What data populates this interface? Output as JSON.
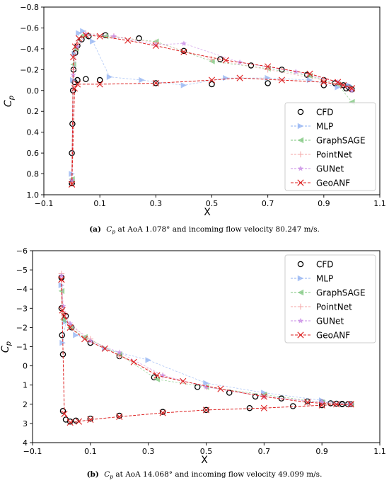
{
  "legend_labels": [
    "CFD",
    "MLP",
    "GraphSAGE",
    "PointNet",
    "GUNet",
    "GeoANF"
  ],
  "series_colors": {
    "CFD": "#000000",
    "MLP": "#8fb0f2",
    "GraphSAGE": "#7cc67c",
    "PointNet": "#f4a6a6",
    "GUNet": "#c98ce6",
    "GeoANF": "#dd2222"
  },
  "captions": [
    {
      "tag": "(a)",
      "pre": "C",
      "sub": "p",
      "text": " at AoA 1.078° and incoming flow velocity 80.247 m/s."
    },
    {
      "tag": "(b)",
      "pre": "C",
      "sub": "p",
      "text": " at AoA 14.068° and incoming flow velocity 49.099 m/s."
    }
  ],
  "chart_data": [
    {
      "type": "line",
      "xlabel": "X",
      "ylabel": "Cp",
      "xlim": [
        -0.1,
        1.1
      ],
      "ylim": [
        1.0,
        -0.8
      ],
      "y_inverted": true,
      "xticks": [
        "−0.1",
        "0.1",
        "0.3",
        "0.5",
        "0.7",
        "0.9",
        "1.1"
      ],
      "xtick_values": [
        -0.1,
        0.1,
        0.3,
        0.5,
        0.7,
        0.9,
        1.1
      ],
      "yticks": [
        "−0.8",
        "−0.6",
        "−0.4",
        "−0.2",
        "0.0",
        "0.2",
        "0.4",
        "0.6",
        "0.8",
        "1.0"
      ],
      "ytick_values": [
        -0.8,
        -0.6,
        -0.4,
        -0.2,
        0.0,
        0.2,
        0.4,
        0.6,
        0.8,
        1.0
      ],
      "legend_position": "lower right",
      "grid": false,
      "series": [
        {
          "name": "CFD",
          "marker": "circle",
          "x": [
            0.0,
            0.0,
            0.002,
            0.006,
            0.012,
            0.02,
            0.035,
            0.06,
            0.12,
            0.24,
            0.4,
            0.53,
            0.64,
            0.75,
            0.84,
            0.9,
            0.94,
            0.97,
            0.99,
            1.0
          ],
          "y": [
            0.89,
            0.6,
            0.32,
            -0.2,
            -0.36,
            -0.43,
            -0.49,
            -0.52,
            -0.53,
            -0.5,
            -0.38,
            -0.3,
            -0.24,
            -0.2,
            -0.15,
            -0.1,
            -0.07,
            -0.05,
            -0.03,
            -0.01
          ]
        },
        {
          "name": "CFD lower",
          "marker": "circle",
          "x": [
            0.0,
            0.004,
            0.01,
            0.02,
            0.05,
            0.1,
            0.3,
            0.5,
            0.7,
            0.9,
            0.98,
            1.0
          ],
          "y": [
            0.89,
            0.0,
            -0.08,
            -0.1,
            -0.11,
            -0.1,
            -0.07,
            -0.06,
            -0.07,
            -0.05,
            -0.02,
            -0.01
          ]
        },
        {
          "name": "MLP",
          "marker": "triangle-right",
          "x": [
            0.0,
            0.004,
            0.01,
            0.025,
            0.04,
            0.075,
            0.135,
            0.25,
            0.4,
            0.55,
            0.7,
            0.85,
            0.95,
            0.99
          ],
          "y": [
            0.8,
            -0.1,
            -0.35,
            -0.55,
            -0.57,
            -0.47,
            -0.13,
            -0.1,
            -0.05,
            -0.12,
            -0.12,
            -0.1,
            -0.03,
            -0.05
          ]
        },
        {
          "name": "GraphSAGE",
          "marker": "triangle-left",
          "x": [
            0.0,
            0.005,
            0.015,
            0.04,
            0.12,
            0.3,
            0.5,
            0.7,
            0.85,
            0.95,
            1.0
          ],
          "y": [
            0.85,
            -0.25,
            -0.4,
            -0.53,
            -0.52,
            -0.47,
            -0.28,
            -0.21,
            -0.14,
            -0.06,
            0.11
          ]
        },
        {
          "name": "PointNet",
          "marker": "plus",
          "x": [
            0.0,
            0.005,
            0.02,
            0.05,
            0.15,
            0.3,
            0.5,
            0.7,
            0.9,
            1.0
          ],
          "y": [
            0.88,
            -0.2,
            -0.45,
            -0.55,
            -0.52,
            -0.46,
            -0.3,
            -0.2,
            -0.1,
            -0.01
          ]
        },
        {
          "name": "GUNet",
          "marker": "star",
          "x": [
            0.0,
            0.005,
            0.02,
            0.05,
            0.15,
            0.3,
            0.4,
            0.6,
            0.8,
            0.95,
            1.0
          ],
          "y": [
            0.86,
            -0.15,
            -0.42,
            -0.54,
            -0.52,
            -0.44,
            -0.45,
            -0.27,
            -0.18,
            -0.08,
            0.0
          ]
        },
        {
          "name": "GeoANF",
          "marker": "x",
          "x": [
            0.0,
            0.005,
            0.012,
            0.025,
            0.05,
            0.1,
            0.2,
            0.3,
            0.4,
            0.55,
            0.7,
            0.85,
            0.95,
            1.0
          ],
          "y": [
            0.9,
            -0.32,
            -0.42,
            -0.5,
            -0.53,
            -0.52,
            -0.48,
            -0.43,
            -0.37,
            -0.29,
            -0.23,
            -0.16,
            -0.08,
            -0.02
          ]
        },
        {
          "name": "GeoANF lower",
          "marker": "x",
          "x": [
            0.0,
            0.01,
            0.02,
            0.1,
            0.3,
            0.5,
            0.6,
            0.75,
            0.9,
            0.97,
            1.0
          ],
          "y": [
            0.9,
            -0.02,
            -0.06,
            -0.06,
            -0.07,
            -0.1,
            -0.12,
            -0.1,
            -0.08,
            -0.05,
            -0.02
          ]
        }
      ]
    },
    {
      "type": "line",
      "xlabel": "X",
      "ylabel": "Cp",
      "xlim": [
        -0.1,
        1.1
      ],
      "ylim": [
        4,
        -6
      ],
      "y_inverted": true,
      "xticks": [
        "−0.1",
        "0.1",
        "0.3",
        "0.5",
        "0.7",
        "0.9",
        "1.1"
      ],
      "xtick_values": [
        -0.1,
        0.1,
        0.3,
        0.5,
        0.7,
        0.9,
        1.1
      ],
      "yticks": [
        "−6",
        "−5",
        "−4",
        "−3",
        "−2",
        "−1",
        "0",
        "1",
        "2",
        "3",
        "4"
      ],
      "ytick_values": [
        -6,
        -5,
        -4,
        -3,
        -2,
        -1,
        0,
        1,
        2,
        3,
        4
      ],
      "legend_position": "upper right",
      "grid": false,
      "series": [
        {
          "name": "CFD",
          "marker": "circle",
          "x": [
            0.0,
            0.0,
            0.002,
            0.005,
            0.015,
            0.035,
            0.1,
            0.2,
            0.32,
            0.47,
            0.58,
            0.67,
            0.76,
            0.85,
            0.9,
            0.93,
            0.95,
            0.97,
            0.99,
            1.0
          ],
          "y": [
            -4.6,
            -3.0,
            -1.6,
            -0.6,
            -2.6,
            -2.0,
            -1.2,
            -0.5,
            0.6,
            1.1,
            1.4,
            1.6,
            1.7,
            1.85,
            1.9,
            1.95,
            1.97,
            1.98,
            2.0,
            2.0
          ]
        },
        {
          "name": "CFD lower",
          "marker": "circle",
          "x": [
            0.0,
            0.005,
            0.015,
            0.03,
            0.05,
            0.1,
            0.2,
            0.35,
            0.5,
            0.65,
            0.8,
            0.9,
            0.97,
            1.0
          ],
          "y": [
            -4.6,
            2.35,
            2.8,
            2.9,
            2.85,
            2.75,
            2.6,
            2.4,
            2.3,
            2.2,
            2.1,
            2.05,
            2.0,
            2.0
          ]
        },
        {
          "name": "MLP",
          "marker": "triangle-right",
          "x": [
            0.0,
            0.004,
            0.015,
            0.05,
            0.15,
            0.3,
            0.5,
            0.7,
            0.9,
            1.0
          ],
          "y": [
            -4.2,
            -1.2,
            -2.3,
            -1.6,
            -0.9,
            -0.3,
            0.9,
            1.4,
            1.8,
            2.0
          ]
        },
        {
          "name": "GraphSAGE",
          "marker": "triangle-left",
          "x": [
            0.0,
            0.005,
            0.03,
            0.08,
            0.2,
            0.33,
            0.5,
            0.7,
            0.9,
            1.0
          ],
          "y": [
            -3.9,
            -2.4,
            -2.0,
            -1.5,
            -0.6,
            0.7,
            1.1,
            1.5,
            1.9,
            2.0
          ]
        },
        {
          "name": "PointNet",
          "marker": "plus",
          "x": [
            0.0,
            0.006,
            0.03,
            0.1,
            0.2,
            0.35,
            0.5,
            0.7,
            0.9,
            1.0
          ],
          "y": [
            -4.8,
            -2.8,
            -2.1,
            -1.4,
            -0.5,
            0.5,
            1.1,
            1.6,
            1.9,
            2.0
          ]
        },
        {
          "name": "GUNet",
          "marker": "star",
          "x": [
            0.0,
            0.006,
            0.03,
            0.1,
            0.2,
            0.35,
            0.5,
            0.7,
            0.9,
            1.0
          ],
          "y": [
            -4.7,
            -3.1,
            -2.2,
            -1.3,
            -0.7,
            0.5,
            1.1,
            1.6,
            1.9,
            2.0
          ]
        },
        {
          "name": "GeoANF",
          "marker": "x",
          "x": [
            0.0,
            0.003,
            0.01,
            0.03,
            0.08,
            0.15,
            0.25,
            0.33,
            0.42,
            0.55,
            0.7,
            0.85,
            0.95,
            1.0
          ],
          "y": [
            -4.5,
            -2.9,
            -2.6,
            -2.0,
            -1.4,
            -0.9,
            -0.2,
            0.5,
            0.8,
            1.2,
            1.6,
            1.9,
            2.0,
            2.0
          ]
        },
        {
          "name": "GeoANF lower",
          "marker": "x",
          "x": [
            0.0,
            0.01,
            0.03,
            0.06,
            0.1,
            0.2,
            0.35,
            0.5,
            0.7,
            0.9,
            1.0
          ],
          "y": [
            -4.5,
            2.5,
            2.95,
            2.9,
            2.8,
            2.65,
            2.45,
            2.3,
            2.2,
            2.05,
            2.0
          ]
        }
      ]
    }
  ]
}
